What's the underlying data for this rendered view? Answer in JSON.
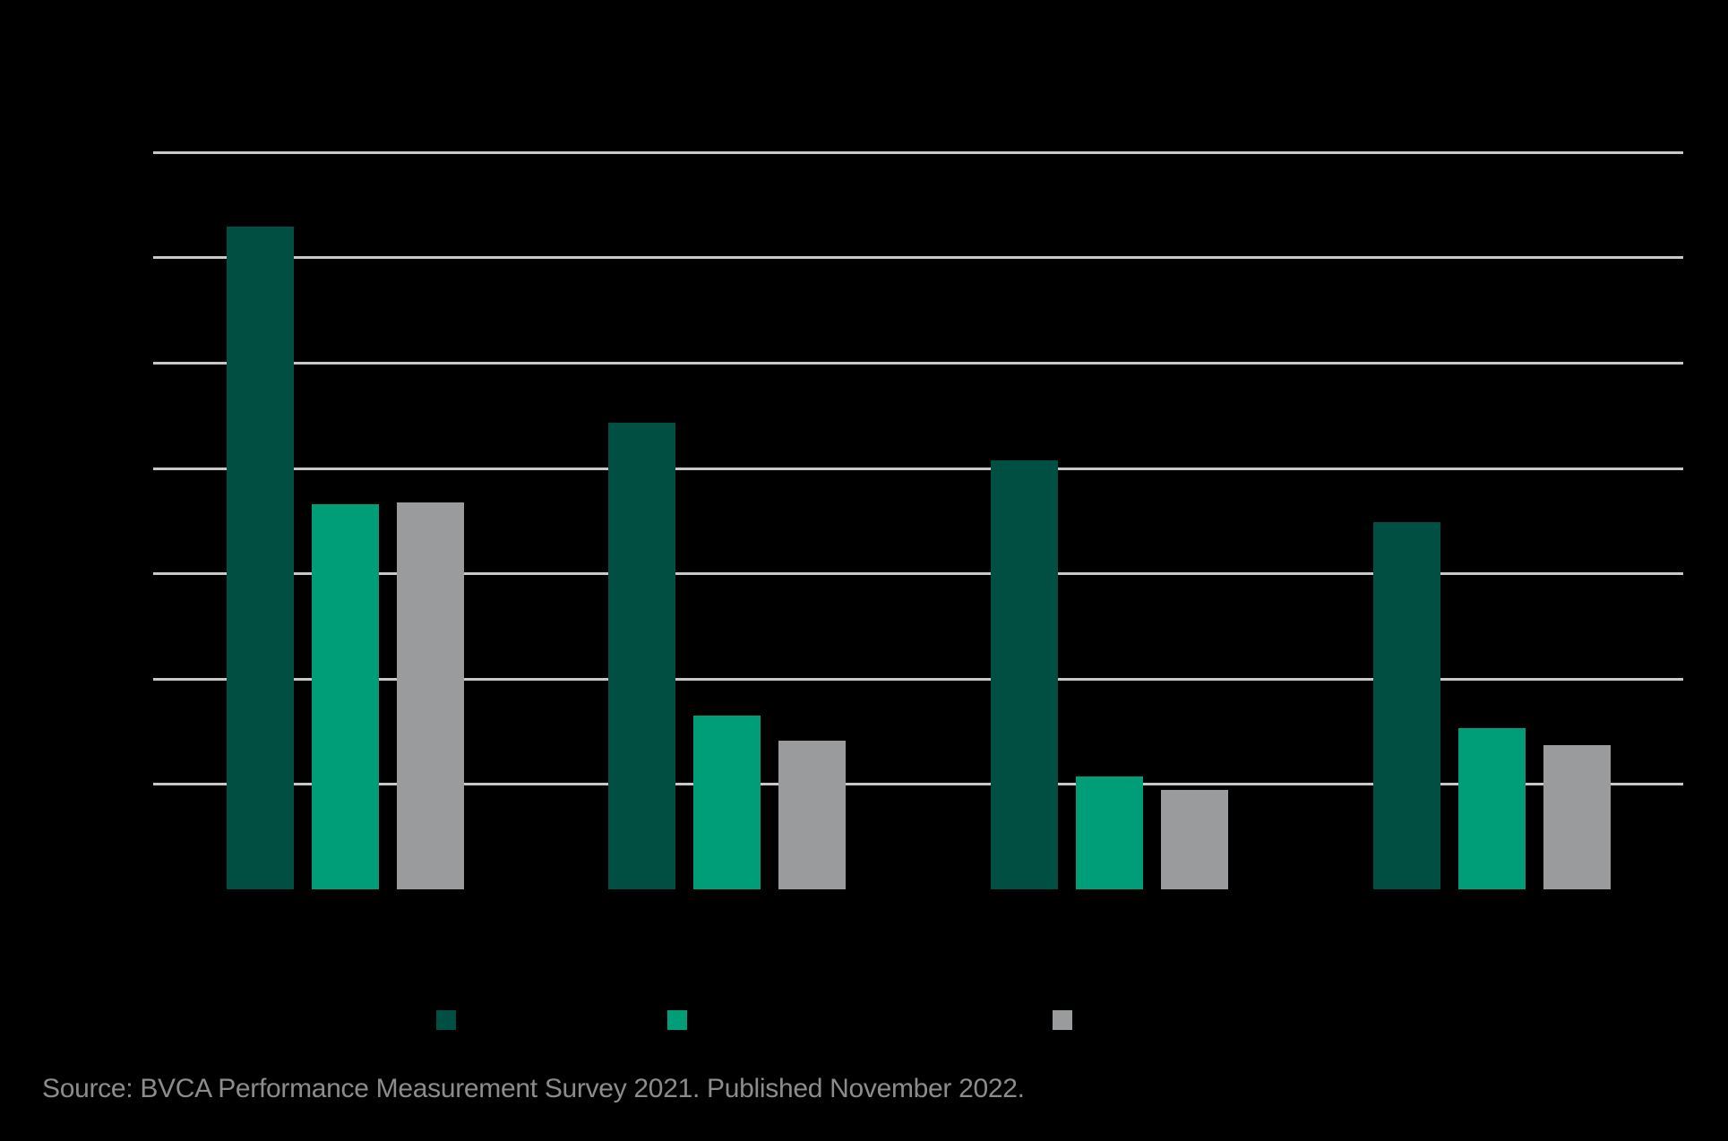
{
  "source_note": "Source: BVCA Performance Measurement Survey 2021. Published November 2022.",
  "colors": {
    "background": "#000000",
    "gridline": "#c8c8c8",
    "series_1": "#004f43",
    "series_2": "#009e78",
    "series_3": "#9a9b9c",
    "source_text": "#8c8c8c"
  },
  "chart_data": {
    "type": "bar",
    "title": "",
    "xlabel": "",
    "ylabel": "",
    "categories": [
      "",
      "",
      "",
      ""
    ],
    "series": [
      {
        "name": "",
        "color": "#004f43",
        "values": [
          6.29,
          4.43,
          4.07,
          3.49
        ]
      },
      {
        "name": "",
        "color": "#009e78",
        "values": [
          3.66,
          1.65,
          1.07,
          1.53
        ]
      },
      {
        "name": "",
        "color": "#9a9b9c",
        "values": [
          3.67,
          1.41,
          0.94,
          1.37
        ]
      }
    ],
    "ylim": [
      0,
      7
    ],
    "yticks": [
      0,
      1,
      2,
      3,
      4,
      5,
      6,
      7
    ],
    "ytick_labels_visible": false,
    "grid": true,
    "legend_position": "bottom",
    "notes": "Axis tick labels, category labels and legend labels are rendered in black on a black background and are not legible; values are expressed in gridline units (0–7)."
  }
}
